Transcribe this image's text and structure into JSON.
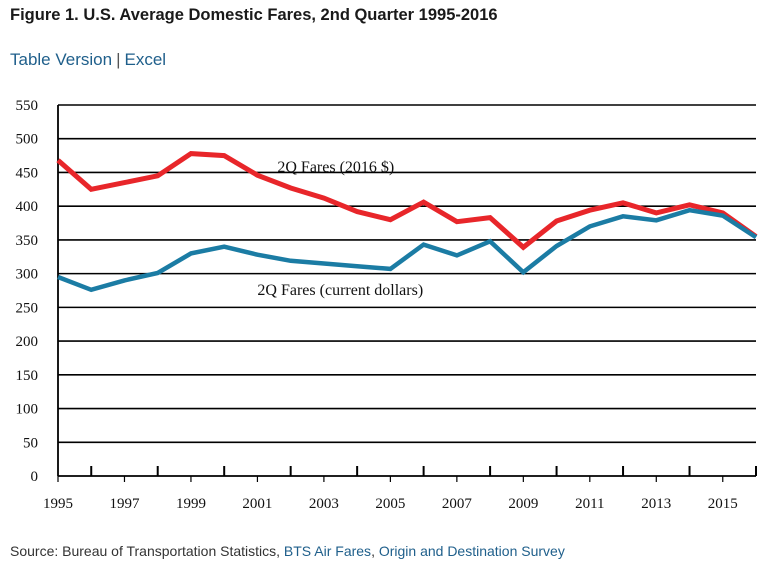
{
  "header": {
    "title": "Figure 1. U.S. Average Domestic Fares, 2nd Quarter 1995-2016"
  },
  "links": {
    "table_version": "Table Version",
    "separator": "|",
    "excel": "Excel"
  },
  "source": {
    "prefix": "Source: Bureau of Transportation Statistics, ",
    "link1": "BTS Air Fares",
    "sep": ", ",
    "link2": "Origin and Destination Survey"
  },
  "chart_data": {
    "type": "line",
    "title": "",
    "xlabel": "",
    "ylabel": "",
    "ylim": [
      0,
      550
    ],
    "xlim": [
      1995,
      2016
    ],
    "yticks": [
      0,
      50,
      100,
      150,
      200,
      250,
      300,
      350,
      400,
      450,
      500,
      550
    ],
    "xtick_labels": [
      "1995",
      "1997",
      "1999",
      "2001",
      "2003",
      "2005",
      "2007",
      "2009",
      "2011",
      "2013",
      "2015"
    ],
    "grid": "horizontal",
    "x": [
      1995,
      1996,
      1997,
      1998,
      1999,
      2000,
      2001,
      2002,
      2003,
      2004,
      2005,
      2006,
      2007,
      2008,
      2009,
      2010,
      2011,
      2012,
      2013,
      2014,
      2015,
      2016
    ],
    "series": [
      {
        "name": "2Q Fares (2016 $)",
        "color": "#e8262a",
        "values": [
          468,
          425,
          435,
          445,
          478,
          475,
          446,
          427,
          412,
          392,
          380,
          406,
          377,
          383,
          339,
          378,
          394,
          405,
          390,
          402,
          390,
          355
        ]
      },
      {
        "name": "2Q Fares (current dollars)",
        "color": "#1b7ca4",
        "values": [
          295,
          276,
          290,
          301,
          330,
          340,
          328,
          319,
          315,
          311,
          307,
          343,
          327,
          348,
          302,
          341,
          370,
          385,
          379,
          394,
          386,
          354
        ]
      }
    ]
  }
}
